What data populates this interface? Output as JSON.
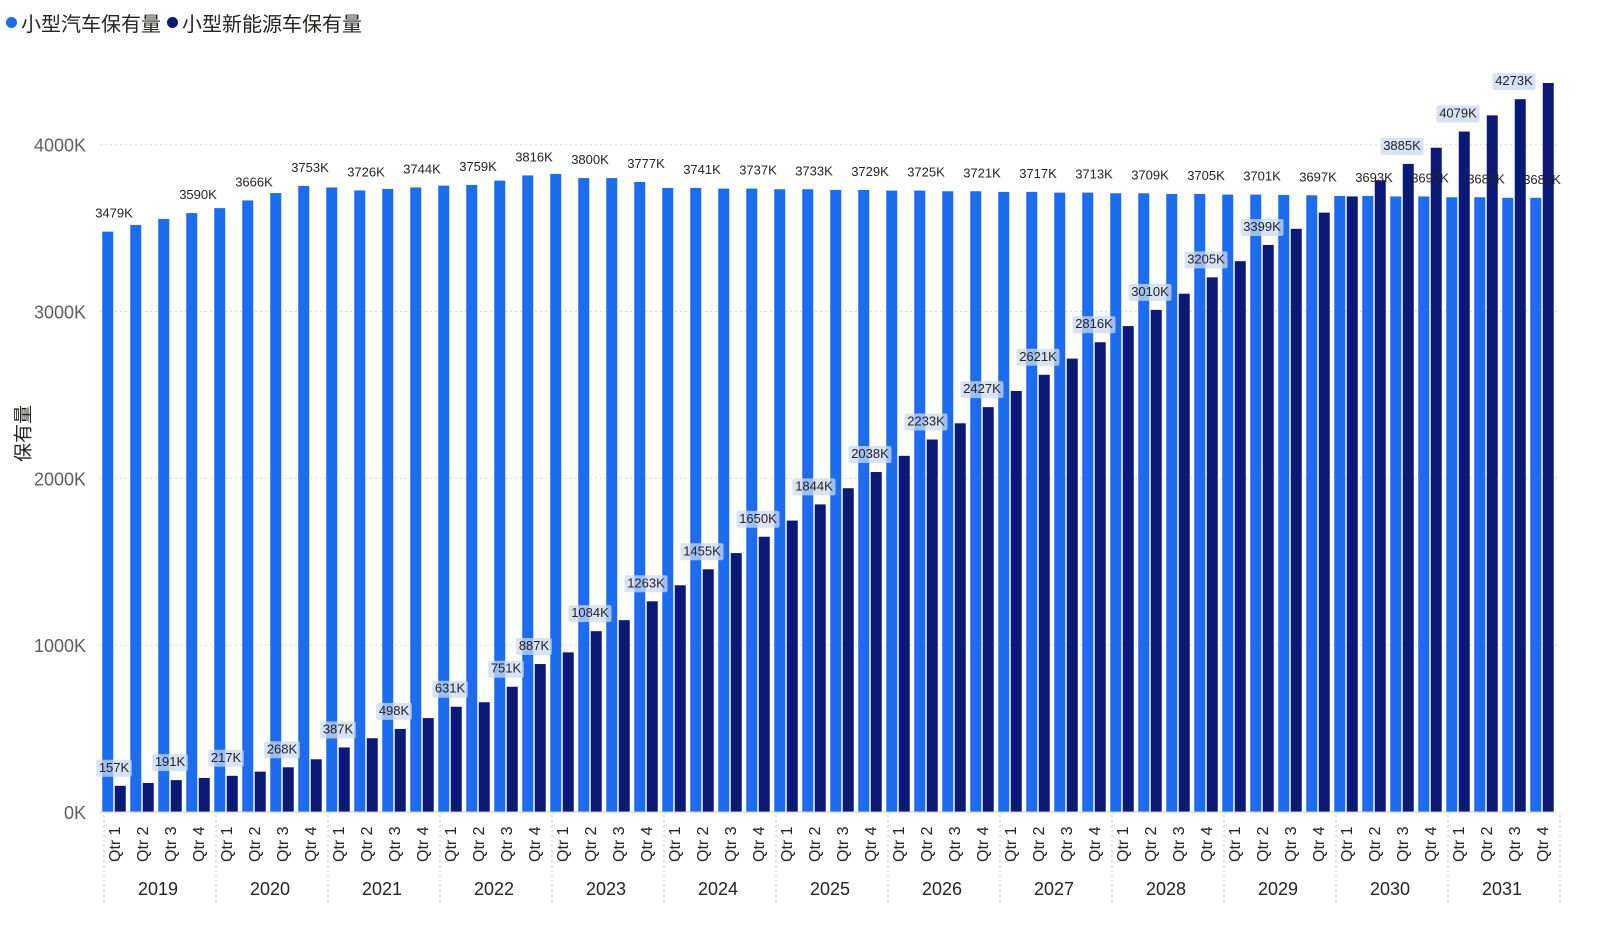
{
  "legend": {
    "series1": "小型汽车保有量",
    "series2": "小型新能源车保有量"
  },
  "colors": {
    "series1": "#1A6CF2",
    "series2": "#0B1A78",
    "grid": "#DADADA",
    "label_bg": "#C9D9F0"
  },
  "chart_data": {
    "type": "bar",
    "ylabel": "保有量",
    "ylim": [
      0,
      4400
    ],
    "yticks": [
      "0K",
      "1000K",
      "2000K",
      "3000K",
      "4000K"
    ],
    "ytick_values": [
      0,
      1000,
      2000,
      3000,
      4000
    ],
    "years": [
      "2019",
      "2020",
      "2021",
      "2022",
      "2023",
      "2024",
      "2025",
      "2026",
      "2027",
      "2028",
      "2029",
      "2030",
      "2031"
    ],
    "quarters": [
      "Qtr 1",
      "Qtr 2",
      "Qtr 3",
      "Qtr 4"
    ],
    "series": [
      {
        "name": "小型汽车保有量",
        "values": [
          3479,
          3519,
          3555,
          3590,
          3620,
          3666,
          3710,
          3753,
          3744,
          3726,
          3735,
          3744,
          3755,
          3759,
          3785,
          3816,
          3825,
          3800,
          3800,
          3777,
          3741,
          3741,
          3737,
          3737,
          3733,
          3733,
          3729,
          3729,
          3725,
          3725,
          3721,
          3721,
          3717,
          3717,
          3713,
          3713,
          3709,
          3709,
          3705,
          3705,
          3701,
          3701,
          3699,
          3697,
          3693,
          3693,
          3690,
          3690,
          3685,
          3685,
          3682,
          3682
        ],
        "labels": [
          "3479K",
          "",
          "",
          "3590K",
          "",
          "3666K",
          "",
          "3753K",
          "",
          "3726K",
          "",
          "3744K",
          "",
          "3759K",
          "",
          "3816K",
          "",
          "3800K",
          "",
          "3777K",
          "",
          "3741K",
          "",
          "3737K",
          "",
          "3733K",
          "",
          "3729K",
          "",
          "3725K",
          "",
          "3721K",
          "",
          "3717K",
          "",
          "3713K",
          "",
          "3709K",
          "",
          "3705K",
          "",
          "3701K",
          "",
          "3697K",
          "",
          "3693K",
          "",
          "3690K",
          "",
          "3685K",
          "",
          "3682K"
        ]
      },
      {
        "name": "小型新能源车保有量",
        "values": [
          157,
          174,
          191,
          204,
          217,
          242,
          268,
          316,
          387,
          442,
          498,
          563,
          631,
          658,
          751,
          887,
          957,
          1084,
          1150,
          1263,
          1359,
          1455,
          1552,
          1650,
          1747,
          1844,
          1941,
          2038,
          2135,
          2233,
          2330,
          2427,
          2524,
          2621,
          2718,
          2816,
          2913,
          3010,
          3107,
          3205,
          3302,
          3399,
          3496,
          3593,
          3690,
          3787,
          3885,
          3982,
          4079,
          4176,
          4273,
          4370
        ],
        "labels": [
          "157K",
          "",
          "191K",
          "",
          "217K",
          "",
          "268K",
          "",
          "387K",
          "",
          "498K",
          "",
          "631K",
          "",
          "751K",
          "887K",
          "",
          "1084K",
          "",
          "1263K",
          "",
          "1455K",
          "",
          "1650K",
          "",
          "1844K",
          "",
          "2038K",
          "",
          "2233K",
          "",
          "2427K",
          "",
          "2621K",
          "",
          "2816K",
          "",
          "3010K",
          "",
          "3205K",
          "",
          "3399K",
          "",
          "",
          "",
          "",
          "3885K",
          "",
          "4079K",
          "",
          "4273K",
          ""
        ]
      }
    ]
  }
}
